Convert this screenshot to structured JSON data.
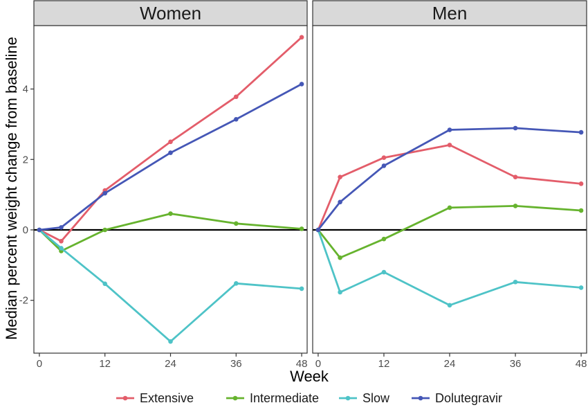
{
  "chart_data": {
    "type": "line",
    "xlabel": "Week",
    "ylabel": "Median percent weight change from baseline",
    "x_ticks": [
      0,
      12,
      24,
      36,
      48
    ],
    "y_ticks": [
      -2,
      0,
      2,
      4
    ],
    "xlim": [
      0,
      48
    ],
    "ylim": [
      -3.5,
      5.8
    ],
    "reference_line_y": 0,
    "legend_position": "bottom",
    "series_meta": [
      {
        "name": "Extensive",
        "color": "#e35d6a"
      },
      {
        "name": "Intermediate",
        "color": "#66b32e"
      },
      {
        "name": "Slow",
        "color": "#4ec3c7"
      },
      {
        "name": "Dolutegravir",
        "color": "#4557b6"
      }
    ],
    "panels": [
      {
        "title": "Women",
        "series": [
          {
            "name": "Extensive",
            "x": [
              0,
              4,
              12,
              24,
              36,
              48
            ],
            "y": [
              0,
              -0.32,
              1.12,
              2.5,
              3.78,
              5.47
            ]
          },
          {
            "name": "Intermediate",
            "x": [
              0,
              4,
              12,
              24,
              36,
              48
            ],
            "y": [
              0,
              -0.6,
              0.0,
              0.46,
              0.18,
              0.03
            ]
          },
          {
            "name": "Slow",
            "x": [
              0,
              4,
              12,
              24,
              36,
              48
            ],
            "y": [
              0,
              -0.52,
              -1.53,
              -3.17,
              -1.52,
              -1.67
            ]
          },
          {
            "name": "Dolutegravir",
            "x": [
              0,
              4,
              12,
              24,
              36,
              48
            ],
            "y": [
              0,
              0.07,
              1.04,
              2.19,
              3.14,
              4.14
            ]
          }
        ]
      },
      {
        "title": "Men",
        "series": [
          {
            "name": "Extensive",
            "x": [
              0,
              4,
              12,
              24,
              36,
              48
            ],
            "y": [
              0,
              1.5,
              2.05,
              2.41,
              1.5,
              1.31
            ]
          },
          {
            "name": "Intermediate",
            "x": [
              0,
              4,
              12,
              24,
              36,
              48
            ],
            "y": [
              0,
              -0.79,
              -0.26,
              0.63,
              0.68,
              0.55
            ]
          },
          {
            "name": "Slow",
            "x": [
              0,
              4,
              12,
              24,
              36,
              48
            ],
            "y": [
              0,
              -1.77,
              -1.2,
              -2.14,
              -1.48,
              -1.64
            ]
          },
          {
            "name": "Dolutegravir",
            "x": [
              0,
              4,
              12,
              24,
              36,
              48
            ],
            "y": [
              0,
              0.79,
              1.82,
              2.84,
              2.89,
              2.77
            ]
          }
        ]
      }
    ]
  }
}
